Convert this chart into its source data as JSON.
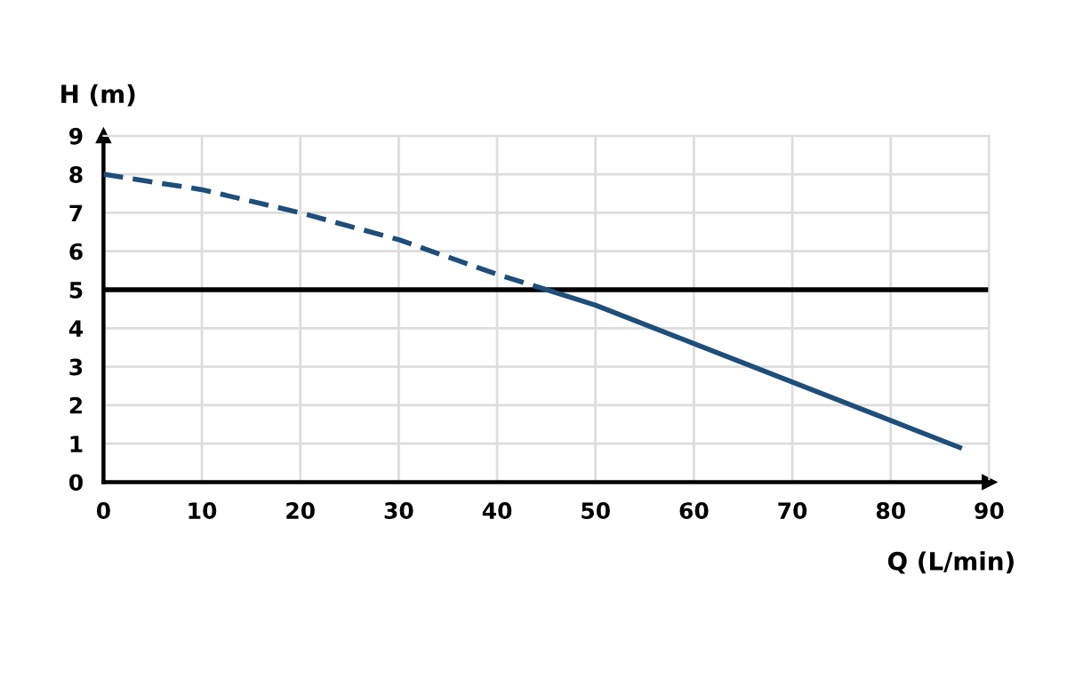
{
  "chart_data": {
    "type": "line",
    "xlabel": "Q (L/min)",
    "ylabel": "H (m)",
    "series": [
      {
        "color": "#1f4e79",
        "line_style": "dashed",
        "x": [
          0,
          10,
          20,
          30,
          40,
          45
        ],
        "values": [
          8,
          7.6,
          7.0,
          6.3,
          5.4,
          5.0
        ]
      },
      {
        "color": "#1f4e79",
        "line_style": "solid",
        "x": [
          45,
          50,
          60,
          70,
          80,
          87
        ],
        "values": [
          5.0,
          4.6,
          3.6,
          2.6,
          1.6,
          0.9
        ]
      }
    ],
    "ref_lines": [
      {
        "axis": "y",
        "value": 5,
        "color": "#000000",
        "line_style": "solid"
      }
    ],
    "xlim": [
      0,
      90
    ],
    "ylim": [
      0,
      9
    ],
    "xticks": [
      0,
      10,
      20,
      30,
      40,
      50,
      60,
      70,
      80,
      90
    ],
    "yticks": [
      0,
      1,
      2,
      3,
      4,
      5,
      6,
      7,
      8,
      9
    ],
    "grid": true,
    "legend": false,
    "marker": "none"
  }
}
